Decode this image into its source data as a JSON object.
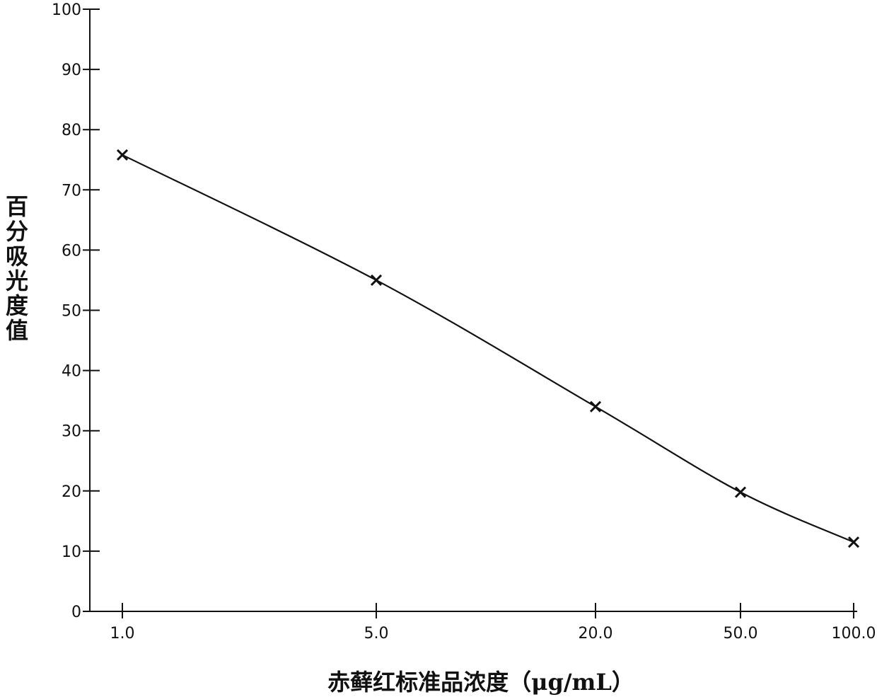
{
  "chart_data": {
    "type": "line",
    "title": "",
    "xlabel": "赤藓红标准品浓度（μg/mL）",
    "ylabel": "百分吸光度值",
    "x_scale": "log",
    "x_ticks": [
      1.0,
      5.0,
      20.0,
      50.0,
      100.0
    ],
    "x_tick_labels": [
      "1.0",
      "5.0",
      "20.0",
      "50.0",
      "100.0"
    ],
    "ylim": [
      0,
      100
    ],
    "y_ticks": [
      0,
      10,
      20,
      30,
      40,
      50,
      60,
      70,
      80,
      90,
      100
    ],
    "y_tick_labels": [
      "0",
      "10",
      "20",
      "30",
      "40",
      "50",
      "60",
      "70",
      "80",
      "90",
      "100"
    ],
    "grid": false,
    "series": [
      {
        "marker": "x",
        "x": [
          1.0,
          5.0,
          20.0,
          50.0,
          100.0
        ],
        "y": [
          75.8,
          55.0,
          34.0,
          19.8,
          11.5
        ]
      }
    ],
    "colors": {
      "line": "#111111",
      "background": "#ffffff"
    }
  }
}
